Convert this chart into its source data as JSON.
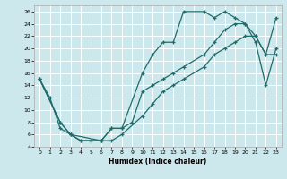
{
  "xlabel": "Humidex (Indice chaleur)",
  "bg_color": "#cde8ec",
  "grid_color": "#ffffff",
  "line_color": "#1f6b6b",
  "xlim": [
    -0.5,
    23.5
  ],
  "ylim": [
    4,
    27
  ],
  "xticks": [
    0,
    1,
    2,
    3,
    4,
    5,
    6,
    7,
    8,
    9,
    10,
    11,
    12,
    13,
    14,
    15,
    16,
    17,
    18,
    19,
    20,
    21,
    22,
    23
  ],
  "yticks": [
    4,
    6,
    8,
    10,
    12,
    14,
    16,
    18,
    20,
    22,
    24,
    26
  ],
  "line1_x": [
    0,
    1,
    2,
    3,
    4,
    5,
    6,
    7,
    8,
    10,
    11,
    12,
    13,
    14,
    16,
    17,
    18,
    19,
    20,
    21,
    22,
    23
  ],
  "line1_y": [
    15,
    12,
    7,
    6,
    5,
    5,
    5,
    7,
    7,
    16,
    19,
    21,
    21,
    26,
    26,
    25,
    26,
    25,
    24,
    21,
    14,
    20
  ],
  "line2_x": [
    0,
    2,
    3,
    4,
    5,
    6,
    7,
    8,
    10,
    11,
    12,
    13,
    14,
    16,
    17,
    18,
    19,
    20,
    21,
    22,
    23
  ],
  "line2_y": [
    15,
    8,
    6,
    5,
    5,
    5,
    5,
    6,
    9,
    11,
    13,
    14,
    15,
    17,
    19,
    20,
    21,
    22,
    22,
    19,
    19
  ],
  "line3_x": [
    0,
    2,
    3,
    6,
    7,
    8,
    9,
    10,
    11,
    12,
    13,
    14,
    16,
    17,
    18,
    19,
    20,
    21,
    22,
    23
  ],
  "line3_y": [
    15,
    8,
    6,
    5,
    7,
    7,
    8,
    13,
    14,
    15,
    16,
    17,
    19,
    21,
    23,
    24,
    24,
    22,
    19,
    25
  ]
}
